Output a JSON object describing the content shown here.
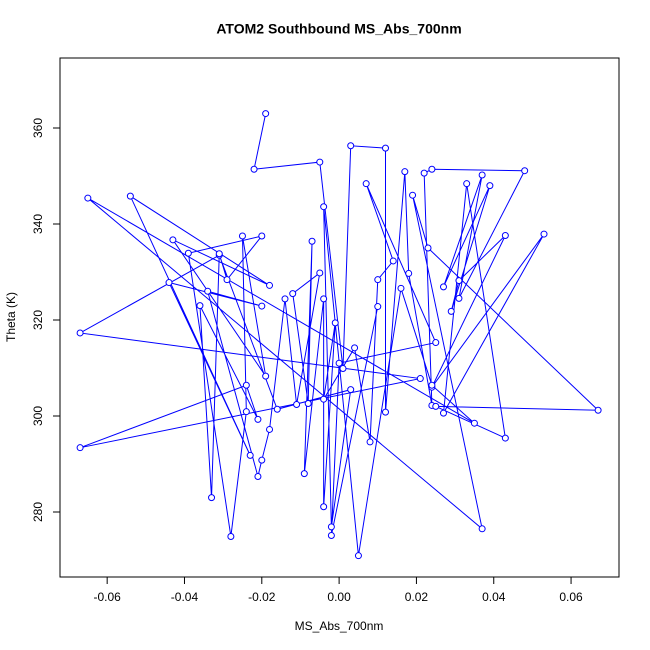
{
  "chart_data": {
    "type": "scatter",
    "title": "ATOM2 Southbound MS_Abs_700nm",
    "x_label": "MS_Abs_700nm",
    "y_label": "Theta (K)",
    "color": "#0000ff",
    "xlim": [
      -0.0722,
      0.0724
    ],
    "ylim": [
      266.46,
      374.58
    ],
    "xticks": [
      -0.06,
      -0.04,
      -0.02,
      {
        "value": 0,
        "label": "0.00"
      },
      0.02,
      0.04,
      0.06
    ],
    "yticks": [
      280,
      300,
      320,
      340,
      360
    ],
    "x": [
      -0.019,
      -0.022,
      -0.005,
      0.001,
      0.003,
      0.012,
      0.012,
      0.017,
      0.018,
      0.024,
      0.022,
      0.024,
      0.048,
      0.031,
      0.037,
      0.027,
      0.039,
      0.029,
      0.031,
      0.043,
      0.024,
      0.053,
      0.027,
      0.033,
      0.043,
      0.025,
      0.067,
      0.023,
      0.019,
      0.037,
      -0.065,
      0.035,
      0.024,
      0.016,
      0.005,
      -0.004,
      -0.002,
      0.003,
      -0.016,
      -0.031,
      -0.067,
      0.021,
      -0.067,
      -0.024,
      -0.021,
      -0.036,
      -0.033,
      -0.031,
      -0.029,
      -0.02,
      -0.039,
      -0.028,
      -0.024,
      -0.025,
      -0.019,
      -0.043,
      -0.018,
      -0.054,
      -0.023,
      -0.044,
      -0.02,
      -0.034,
      -0.021,
      -0.02,
      -0.018,
      -0.014,
      -0.011,
      -0.005,
      -0.012,
      -0.008,
      -0.007,
      -0.009,
      -0.004,
      -0.004,
      -0.001,
      -0.004,
      0.004,
      0.008,
      0.01,
      0.014,
      0.007,
      0.025,
      0.0,
      -0.002,
      0.01
    ],
    "values": [
      363.0,
      351.4,
      352.9,
      309.9,
      356.3,
      355.8,
      300.8,
      350.9,
      329.7,
      302.2,
      350.6,
      351.4,
      351.1,
      324.5,
      350.2,
      326.9,
      348.0,
      321.8,
      328.2,
      337.6,
      306.0,
      337.9,
      300.6,
      348.4,
      295.4,
      302.0,
      301.2,
      335.0,
      346.0,
      276.5,
      345.4,
      298.5,
      306.4,
      326.6,
      270.9,
      343.6,
      276.9,
      305.5,
      301.4,
      333.5,
      317.3,
      307.8,
      293.4,
      306.4,
      299.3,
      323.0,
      283.0,
      333.8,
      328.4,
      337.5,
      333.9,
      274.9,
      300.9,
      337.5,
      308.3,
      336.7,
      327.2,
      345.8,
      291.8,
      327.8,
      322.9,
      326.0,
      287.4,
      290.8,
      297.2,
      324.4,
      302.4,
      329.8,
      325.5,
      302.6,
      336.4,
      288.0,
      324.4,
      281.1,
      319.4,
      303.5,
      314.2,
      294.6,
      328.4,
      332.3,
      348.4,
      315.3,
      311.0,
      275.1,
      322.8
    ]
  }
}
